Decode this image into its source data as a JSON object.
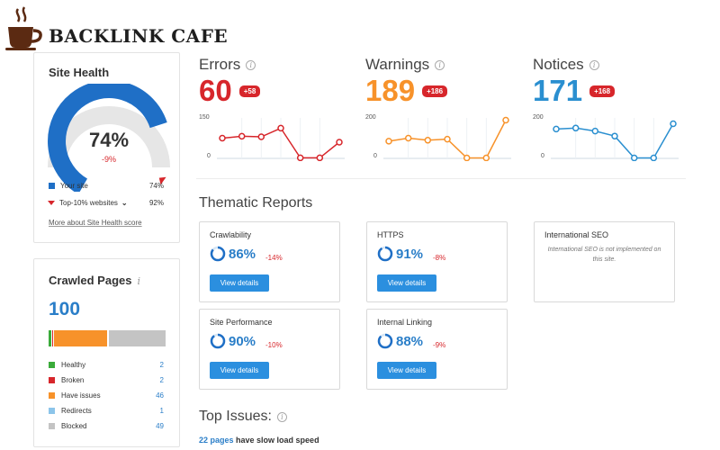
{
  "brand": {
    "name": "BACKLINK CAFE",
    "icon": "coffee-cup-icon",
    "color": "#5b2a12"
  },
  "site_health": {
    "title": "Site Health",
    "score": "74%",
    "delta": "-9%",
    "score_fraction": 0.74,
    "top10_fraction": 0.92,
    "legend": [
      {
        "label": "Your site",
        "value": "74%",
        "color": "#1f6fc6"
      },
      {
        "label": "Top-10% websites",
        "value": "92%",
        "color": "#d7262b"
      }
    ],
    "link": "More about Site Health score"
  },
  "crawled_pages": {
    "title": "Crawled Pages",
    "info_icon": "i",
    "count": "100",
    "rows": [
      {
        "label": "Healthy",
        "value": "2",
        "color": "#3aab3a"
      },
      {
        "label": "Broken",
        "value": "2",
        "color": "#d7262b"
      },
      {
        "label": "Have issues",
        "value": "46",
        "color": "#f7922a"
      },
      {
        "label": "Redirects",
        "value": "1",
        "color": "#8cc5ea"
      },
      {
        "label": "Blocked",
        "value": "49",
        "color": "#c4c4c4"
      }
    ]
  },
  "stats": [
    {
      "label": "Errors",
      "value": "60",
      "badge": "+58",
      "color": "#d7262b",
      "ymax": "150",
      "ymin": "0",
      "series": [
        75,
        82,
        80,
        112,
        2,
        2,
        60
      ]
    },
    {
      "label": "Warnings",
      "value": "189",
      "badge": "+186",
      "color": "#f7922a",
      "ymax": "200",
      "ymin": "0",
      "series": [
        85,
        100,
        90,
        95,
        2,
        2,
        189
      ]
    },
    {
      "label": "Notices",
      "value": "171",
      "badge": "+168",
      "color": "#2a8fd0",
      "ymax": "200",
      "ymin": "0",
      "series": [
        145,
        150,
        135,
        110,
        2,
        2,
        171
      ]
    }
  ],
  "thematic": {
    "title": "Thematic Reports",
    "reports": [
      {
        "name": "Crawlability",
        "pct": "86%",
        "delta": "-14%",
        "fraction": 0.86,
        "button": "View details"
      },
      {
        "name": "HTTPS",
        "pct": "91%",
        "delta": "-8%",
        "fraction": 0.91,
        "button": "View details"
      },
      {
        "name": "International SEO",
        "note": "International SEO is not implemented on this site."
      },
      {
        "name": "Site Performance",
        "pct": "90%",
        "delta": "-10%",
        "fraction": 0.9,
        "button": "View details"
      },
      {
        "name": "Internal Linking",
        "pct": "88%",
        "delta": "-9%",
        "fraction": 0.88,
        "button": "View details"
      }
    ]
  },
  "top_issues": {
    "title": "Top Issues:",
    "first": {
      "link": "22 pages",
      "text": " have slow load speed"
    }
  }
}
